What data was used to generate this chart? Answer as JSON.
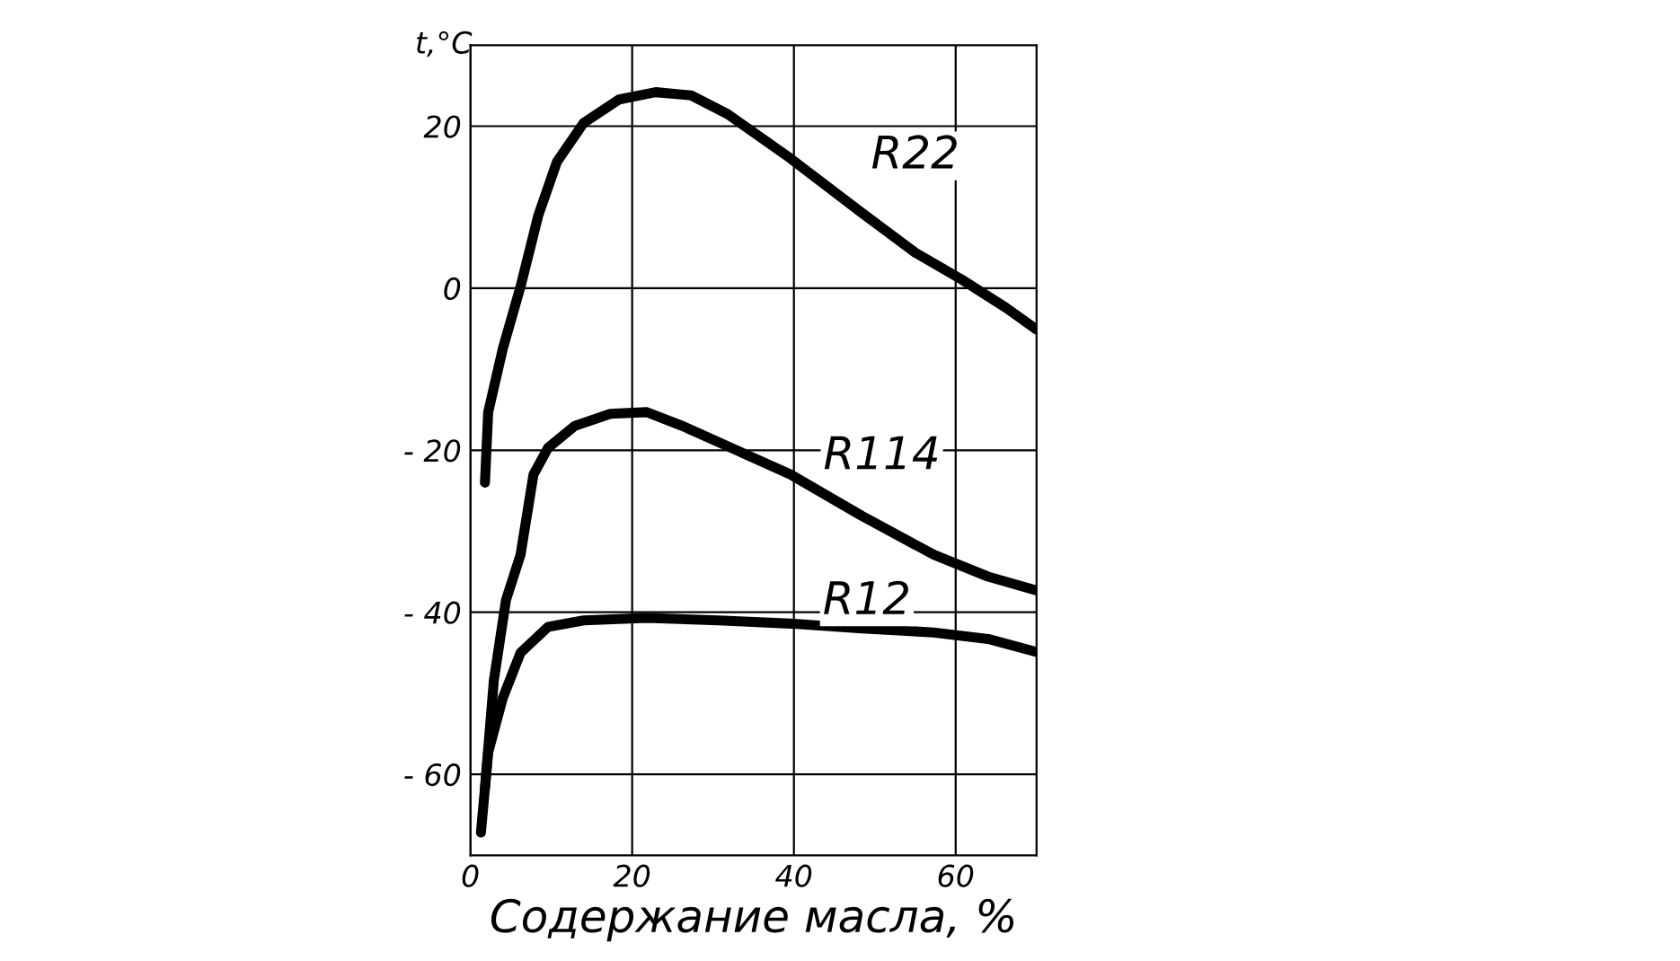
{
  "chart_data": {
    "type": "line",
    "xlabel": "Содержание масла, %",
    "ylabel": "t,°C",
    "xlim": [
      0,
      70
    ],
    "ylim": [
      -70,
      30
    ],
    "xticks": [
      0,
      20,
      40,
      60
    ],
    "yticks": [
      {
        "value": -60,
        "label": "- 60"
      },
      {
        "value": -40,
        "label": "- 40"
      },
      {
        "value": -20,
        "label": "- 20"
      },
      0,
      20
    ],
    "grid": true,
    "legend": false,
    "line_style": "solid",
    "marker": "none",
    "series": [
      {
        "name": "R22",
        "color": "#000000",
        "x": [
          1.8,
          2.2,
          4,
          6.2,
          8.4,
          10.7,
          14,
          18.4,
          22.9,
          27.3,
          31.8,
          39.6,
          48.4,
          55,
          60.7,
          66.2,
          70
        ],
        "values": [
          -24,
          -15.3,
          -7.5,
          0.2,
          9,
          15.6,
          20.4,
          23.3,
          24.2,
          23.8,
          21.5,
          16,
          9.3,
          4.4,
          1.1,
          -2.4,
          -5.1
        ]
      },
      {
        "name": "R114",
        "color": "#000000",
        "x": [
          1.8,
          2.9,
          4.4,
          6.2,
          7.8,
          9.6,
          12.9,
          17.3,
          21.8,
          26.2,
          32.9,
          39.6,
          48.4,
          57.3,
          64,
          70
        ],
        "values": [
          -61.7,
          -48.4,
          -38.5,
          -32.9,
          -23,
          -19.7,
          -17,
          -15.5,
          -15.3,
          -17,
          -20,
          -23,
          -28.1,
          -32.9,
          -35.6,
          -37.3
        ]
      },
      {
        "name": "R12",
        "color": "#000000",
        "x": [
          1.3,
          2.2,
          4,
          6.2,
          9.6,
          14,
          21.8,
          30.7,
          39.6,
          48.4,
          57.3,
          64,
          70
        ],
        "values": [
          -67.2,
          -57.3,
          -50.6,
          -45,
          -41.8,
          -41,
          -40.7,
          -41,
          -41.4,
          -42,
          -42.5,
          -43.3,
          -44.9
        ]
      }
    ]
  }
}
